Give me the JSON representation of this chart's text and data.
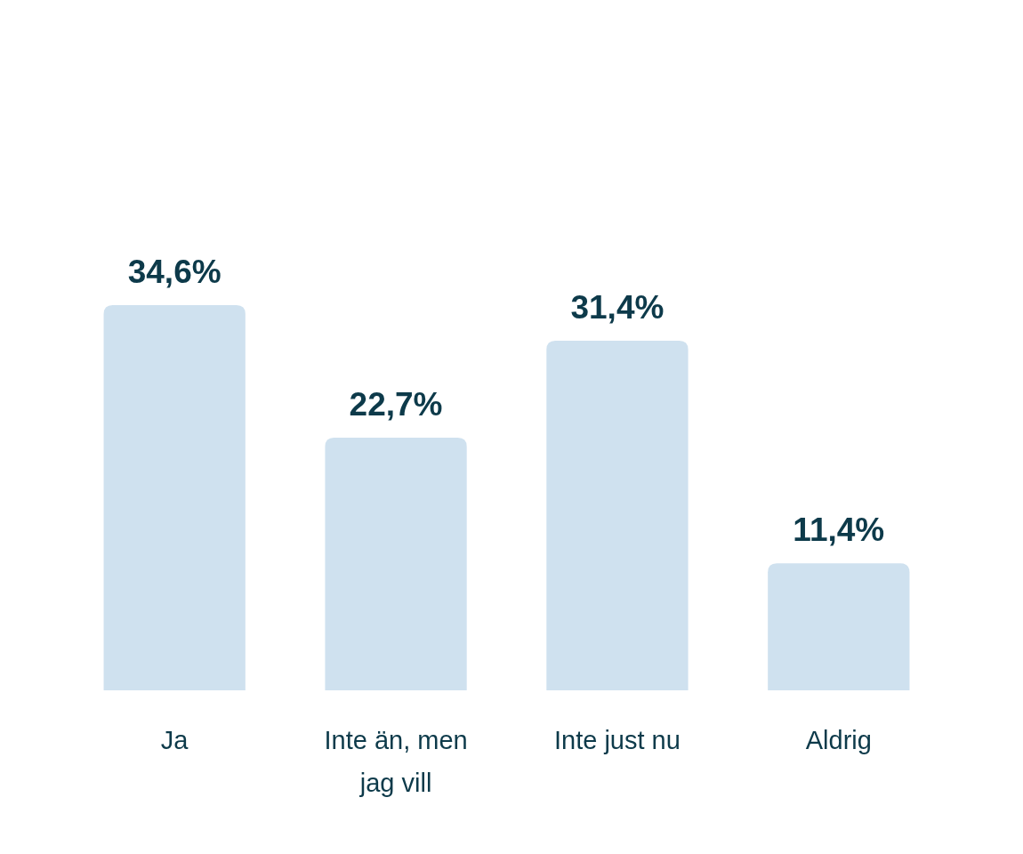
{
  "chart_data": {
    "type": "bar",
    "categories": [
      "Ja",
      "Inte än, men jag vill",
      "Inte just nu",
      "Aldrig"
    ],
    "values": [
      34.6,
      22.7,
      31.4,
      11.4
    ],
    "color": "#cfe1ef",
    "value_labels": [
      "34,6%",
      "22,7%",
      "31,4%",
      "11,4%"
    ]
  }
}
